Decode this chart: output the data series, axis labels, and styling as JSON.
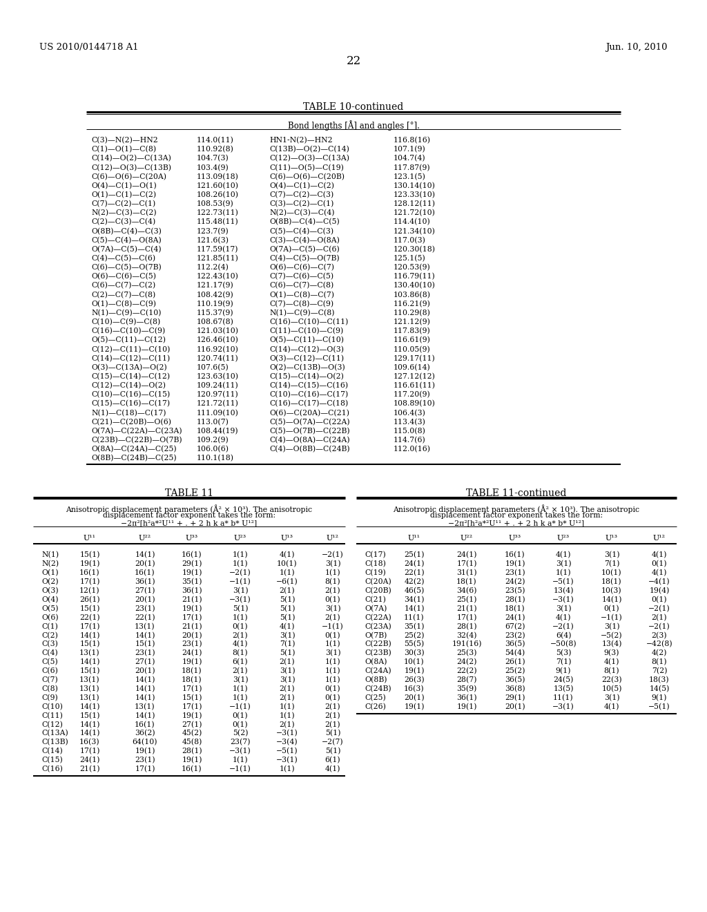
{
  "header_left": "US 2010/0144718 A1",
  "header_right": "Jun. 10, 2010",
  "page_number": "22",
  "bg_color": "#ffffff",
  "table10_title": "TABLE 10-continued",
  "table10_subtitle": "Bond lengths [Å] and angles [°].",
  "table10_data": [
    [
      "C(3)—N(2)—HN2",
      "114.0(11)",
      "HN1-N(2)—HN2",
      "116.8(16)"
    ],
    [
      "C(1)—O(1)—C(8)",
      "110.92(8)",
      "C(13B)—O(2)—C(14)",
      "107.1(9)"
    ],
    [
      "C(14)—O(2)—C(13A)",
      "104.7(3)",
      "C(12)—O(3)—C(13A)",
      "104.7(4)"
    ],
    [
      "C(12)—O(3)—C(13B)",
      "103.4(9)",
      "C(11)—O(5)—C(19)",
      "117.87(9)"
    ],
    [
      "C(6)—O(6)—C(20A)",
      "113.09(18)",
      "C(6)—O(6)—C(20B)",
      "123.1(5)"
    ],
    [
      "O(4)—C(1)—O(1)",
      "121.60(10)",
      "O(4)—C(1)—C(2)",
      "130.14(10)"
    ],
    [
      "O(1)—C(1)—C(2)",
      "108.26(10)",
      "C(7)—C(2)—C(3)",
      "123.33(10)"
    ],
    [
      "C(7)—C(2)—C(1)",
      "108.53(9)",
      "C(3)—C(2)—C(1)",
      "128.12(11)"
    ],
    [
      "N(2)—C(3)—C(2)",
      "122.73(11)",
      "N(2)—C(3)—C(4)",
      "121.72(10)"
    ],
    [
      "C(2)—C(3)—C(4)",
      "115.48(11)",
      "O(8B)—C(4)—C(5)",
      "114.4(10)"
    ],
    [
      "O(8B)—C(4)—C(3)",
      "123.7(9)",
      "C(5)—C(4)—C(3)",
      "121.34(10)"
    ],
    [
      "C(5)—C(4)—O(8A)",
      "121.6(3)",
      "C(3)—C(4)—O(8A)",
      "117.0(3)"
    ],
    [
      "O(7A)—C(5)—C(4)",
      "117.59(17)",
      "O(7A)—C(5)—C(6)",
      "120.30(18)"
    ],
    [
      "C(4)—C(5)—C(6)",
      "121.85(11)",
      "C(4)—C(5)—O(7B)",
      "125.1(5)"
    ],
    [
      "C(6)—C(5)—O(7B)",
      "112.2(4)",
      "O(6)—C(6)—C(7)",
      "120.53(9)"
    ],
    [
      "O(6)—C(6)—C(5)",
      "122.43(10)",
      "C(7)—C(6)—C(5)",
      "116.79(11)"
    ],
    [
      "C(6)—C(7)—C(2)",
      "121.17(9)",
      "C(6)—C(7)—C(8)",
      "130.40(10)"
    ],
    [
      "C(2)—C(7)—C(8)",
      "108.42(9)",
      "O(1)—C(8)—C(7)",
      "103.86(8)"
    ],
    [
      "O(1)—C(8)—C(9)",
      "110.19(9)",
      "C(7)—C(8)—C(9)",
      "116.21(9)"
    ],
    [
      "N(1)—C(9)—C(10)",
      "115.37(9)",
      "N(1)—C(9)—C(8)",
      "110.29(8)"
    ],
    [
      "C(10)—C(9)—C(8)",
      "108.67(8)",
      "C(16)—C(10)—C(11)",
      "121.12(9)"
    ],
    [
      "C(16)—C(10)—C(9)",
      "121.03(10)",
      "C(11)—C(10)—C(9)",
      "117.83(9)"
    ],
    [
      "O(5)—C(11)—C(12)",
      "126.46(10)",
      "O(5)—C(11)—C(10)",
      "116.61(9)"
    ],
    [
      "C(12)—C(11)—C(10)",
      "116.92(10)",
      "C(14)—C(12)—O(3)",
      "110.05(9)"
    ],
    [
      "C(14)—C(12)—C(11)",
      "120.74(11)",
      "O(3)—C(12)—C(11)",
      "129.17(11)"
    ],
    [
      "O(3)—C(13A)—O(2)",
      "107.6(5)",
      "O(2)—C(13B)—O(3)",
      "109.6(14)"
    ],
    [
      "C(15)—C(14)—C(12)",
      "123.63(10)",
      "C(15)—C(14)—O(2)",
      "127.12(12)"
    ],
    [
      "C(12)—C(14)—O(2)",
      "109.24(11)",
      "C(14)—C(15)—C(16)",
      "116.61(11)"
    ],
    [
      "C(10)—C(16)—C(15)",
      "120.97(11)",
      "C(10)—C(16)—C(17)",
      "117.20(9)"
    ],
    [
      "C(15)—C(16)—C(17)",
      "121.72(11)",
      "C(16)—C(17)—C(18)",
      "108.89(10)"
    ],
    [
      "N(1)—C(18)—C(17)",
      "111.09(10)",
      "O(6)—C(20A)—C(21)",
      "106.4(3)"
    ],
    [
      "C(21)—C(20B)—O(6)",
      "113.0(7)",
      "C(5)—O(7A)—C(22A)",
      "113.4(3)"
    ],
    [
      "O(7A)—C(22A)—C(23A)",
      "108.44(19)",
      "C(5)—O(7B)—C(22B)",
      "115.0(8)"
    ],
    [
      "C(23B)—C(22B)—O(7B)",
      "109.2(9)",
      "C(4)—O(8A)—C(24A)",
      "114.7(6)"
    ],
    [
      "O(8A)—C(24A)—C(25)",
      "106.0(6)",
      "C(4)—O(8B)—C(24B)",
      "112.0(16)"
    ],
    [
      "O(8B)—C(24B)—C(25)",
      "110.1(18)",
      "",
      ""
    ]
  ],
  "table11_title": "TABLE 11",
  "table11cont_title": "TABLE 11-continued",
  "table11_caption_line1": "Anisotropic displacement parameters (Å² × 10³). The anisotropic",
  "table11_caption_line2": "displacement factor exponent takes the form:",
  "table11_caption_line3": "−2π²[h²a*²U¹¹ + . + 2 h k a* b* U¹²]",
  "table11_headers": [
    "U¹¹",
    "U²²",
    "U³³",
    "U²³",
    "U¹³",
    "U¹²"
  ],
  "table11_data": [
    [
      "N(1)",
      "15(1)",
      "14(1)",
      "16(1)",
      "1(1)",
      "4(1)",
      "−2(1)"
    ],
    [
      "N(2)",
      "19(1)",
      "20(1)",
      "29(1)",
      "1(1)",
      "10(1)",
      "3(1)"
    ],
    [
      "O(1)",
      "16(1)",
      "16(1)",
      "19(1)",
      "−2(1)",
      "1(1)",
      "1(1)"
    ],
    [
      "O(2)",
      "17(1)",
      "36(1)",
      "35(1)",
      "−1(1)",
      "−6(1)",
      "8(1)"
    ],
    [
      "O(3)",
      "12(1)",
      "27(1)",
      "36(1)",
      "3(1)",
      "2(1)",
      "2(1)"
    ],
    [
      "O(4)",
      "26(1)",
      "20(1)",
      "21(1)",
      "−3(1)",
      "5(1)",
      "0(1)"
    ],
    [
      "O(5)",
      "15(1)",
      "23(1)",
      "19(1)",
      "5(1)",
      "5(1)",
      "3(1)"
    ],
    [
      "O(6)",
      "22(1)",
      "22(1)",
      "17(1)",
      "1(1)",
      "5(1)",
      "2(1)"
    ],
    [
      "C(1)",
      "17(1)",
      "13(1)",
      "21(1)",
      "0(1)",
      "4(1)",
      "−1(1)"
    ],
    [
      "C(2)",
      "14(1)",
      "14(1)",
      "20(1)",
      "2(1)",
      "3(1)",
      "0(1)"
    ],
    [
      "C(3)",
      "15(1)",
      "15(1)",
      "23(1)",
      "4(1)",
      "7(1)",
      "1(1)"
    ],
    [
      "C(4)",
      "13(1)",
      "23(1)",
      "24(1)",
      "8(1)",
      "5(1)",
      "3(1)"
    ],
    [
      "C(5)",
      "14(1)",
      "27(1)",
      "19(1)",
      "6(1)",
      "2(1)",
      "1(1)"
    ],
    [
      "C(6)",
      "15(1)",
      "20(1)",
      "18(1)",
      "2(1)",
      "3(1)",
      "1(1)"
    ],
    [
      "C(7)",
      "13(1)",
      "14(1)",
      "18(1)",
      "3(1)",
      "3(1)",
      "1(1)"
    ],
    [
      "C(8)",
      "13(1)",
      "14(1)",
      "17(1)",
      "1(1)",
      "2(1)",
      "0(1)"
    ],
    [
      "C(9)",
      "13(1)",
      "14(1)",
      "15(1)",
      "1(1)",
      "2(1)",
      "0(1)"
    ],
    [
      "C(10)",
      "14(1)",
      "13(1)",
      "17(1)",
      "−1(1)",
      "1(1)",
      "2(1)"
    ],
    [
      "C(11)",
      "15(1)",
      "14(1)",
      "19(1)",
      "0(1)",
      "1(1)",
      "2(1)"
    ],
    [
      "C(12)",
      "14(1)",
      "16(1)",
      "27(1)",
      "0(1)",
      "2(1)",
      "2(1)"
    ],
    [
      "C(13A)",
      "14(1)",
      "36(2)",
      "45(2)",
      "5(2)",
      "−3(1)",
      "5(1)"
    ],
    [
      "C(13B)",
      "16(3)",
      "64(10)",
      "45(8)",
      "23(7)",
      "−3(4)",
      "−2(7)"
    ],
    [
      "C(14)",
      "17(1)",
      "19(1)",
      "28(1)",
      "−3(1)",
      "−5(1)",
      "5(1)"
    ],
    [
      "C(15)",
      "24(1)",
      "23(1)",
      "19(1)",
      "1(1)",
      "−3(1)",
      "6(1)"
    ],
    [
      "C(16)",
      "21(1)",
      "17(1)",
      "16(1)",
      "−1(1)",
      "1(1)",
      "4(1)"
    ]
  ],
  "table11cont_data": [
    [
      "C(17)",
      "25(1)",
      "24(1)",
      "16(1)",
      "4(1)",
      "3(1)",
      "4(1)"
    ],
    [
      "C(18)",
      "24(1)",
      "17(1)",
      "19(1)",
      "3(1)",
      "7(1)",
      "0(1)"
    ],
    [
      "C(19)",
      "22(1)",
      "31(1)",
      "23(1)",
      "1(1)",
      "10(1)",
      "4(1)"
    ],
    [
      "C(20A)",
      "42(2)",
      "18(1)",
      "24(2)",
      "−5(1)",
      "18(1)",
      "−4(1)"
    ],
    [
      "C(20B)",
      "46(5)",
      "34(6)",
      "23(5)",
      "13(4)",
      "10(3)",
      "19(4)"
    ],
    [
      "C(21)",
      "34(1)",
      "25(1)",
      "28(1)",
      "−3(1)",
      "14(1)",
      "0(1)"
    ],
    [
      "O(7A)",
      "14(1)",
      "21(1)",
      "18(1)",
      "3(1)",
      "0(1)",
      "−2(1)"
    ],
    [
      "C(22A)",
      "11(1)",
      "17(1)",
      "24(1)",
      "4(1)",
      "−1(1)",
      "2(1)"
    ],
    [
      "C(23A)",
      "35(1)",
      "28(1)",
      "67(2)",
      "−2(1)",
      "3(1)",
      "−2(1)"
    ],
    [
      "O(7B)",
      "25(2)",
      "32(4)",
      "23(2)",
      "6(4)",
      "−5(2)",
      "2(3)"
    ],
    [
      "C(22B)",
      "55(5)",
      "191(16)",
      "36(5)",
      "−50(8)",
      "13(4)",
      "−42(8)"
    ],
    [
      "C(23B)",
      "30(3)",
      "25(3)",
      "54(4)",
      "5(3)",
      "9(3)",
      "4(2)"
    ],
    [
      "O(8A)",
      "10(1)",
      "24(2)",
      "26(1)",
      "7(1)",
      "4(1)",
      "8(1)"
    ],
    [
      "C(24A)",
      "19(1)",
      "22(2)",
      "25(2)",
      "9(1)",
      "8(1)",
      "7(2)"
    ],
    [
      "O(8B)",
      "26(3)",
      "28(7)",
      "36(5)",
      "24(5)",
      "22(3)",
      "18(3)"
    ],
    [
      "C(24B)",
      "16(3)",
      "35(9)",
      "36(8)",
      "13(5)",
      "10(5)",
      "14(5)"
    ],
    [
      "C(25)",
      "20(1)",
      "36(1)",
      "29(1)",
      "11(1)",
      "3(1)",
      "9(1)"
    ],
    [
      "C(26)",
      "19(1)",
      "19(1)",
      "20(1)",
      "−3(1)",
      "4(1)",
      "−5(1)"
    ]
  ]
}
